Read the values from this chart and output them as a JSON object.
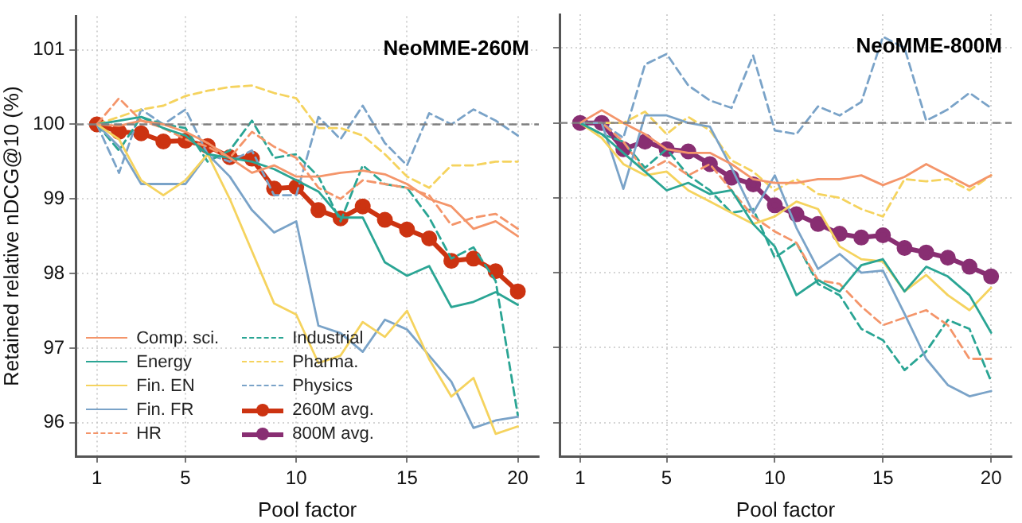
{
  "chart_data": [
    {
      "type": "line",
      "title": "NeoMME-260M",
      "xlabel": "Pool factor",
      "ylabel": "Retained relative nDCG@10 (%)",
      "x": [
        1,
        2,
        3,
        4,
        5,
        6,
        7,
        8,
        9,
        10,
        11,
        12,
        13,
        14,
        15,
        16,
        17,
        18,
        19,
        20
      ],
      "xlim": [
        0.05,
        20.95
      ],
      "xticks": [
        1,
        5,
        10,
        15,
        20
      ],
      "ylim": [
        95.55,
        101.45
      ],
      "yticks": [
        96,
        97,
        98,
        99,
        100,
        101
      ],
      "grid": true,
      "legend": "bottom left",
      "marker": "none",
      "line_style": "solid",
      "ref_lines": [
        {
          "axis": "y",
          "value": 100,
          "color": "#808080",
          "line_style": "dashed"
        }
      ],
      "series": [
        {
          "name": "Comp. sci.",
          "color": "#f4956a",
          "values": [
            100,
            99.98,
            100.05,
            100.0,
            99.9,
            99.75,
            99.55,
            99.35,
            99.45,
            99.3,
            99.3,
            99.35,
            99.38,
            99.33,
            99.2,
            99.0,
            98.9,
            98.6,
            98.7,
            98.5
          ]
        },
        {
          "name": "Energy",
          "color": "#2aa594",
          "values": [
            100,
            100.05,
            100.1,
            99.95,
            99.85,
            99.6,
            99.55,
            99.5,
            99.4,
            99.25,
            99.1,
            98.75,
            98.75,
            98.15,
            97.97,
            98.1,
            97.55,
            97.62,
            97.75,
            97.58
          ]
        },
        {
          "name": "Fin. EN",
          "color": "#f5d35e",
          "values": [
            100,
            99.8,
            99.25,
            99.05,
            99.25,
            99.6,
            99.0,
            98.3,
            97.6,
            97.45,
            96.8,
            96.9,
            97.35,
            97.15,
            97.5,
            96.85,
            96.35,
            96.6,
            95.85,
            95.95
          ]
        },
        {
          "name": "Fin. FR",
          "color": "#7aa3c8",
          "values": [
            100,
            99.7,
            99.2,
            99.2,
            99.2,
            99.6,
            99.3,
            98.85,
            98.55,
            98.7,
            97.3,
            97.2,
            96.95,
            97.38,
            97.25,
            96.9,
            96.55,
            95.93,
            96.03,
            96.08
          ]
        },
        {
          "name": "HR",
          "color": "#f4956a",
          "line_style": "dashed",
          "values": [
            100,
            100.35,
            100.05,
            99.95,
            99.8,
            99.7,
            99.55,
            99.9,
            99.7,
            99.55,
            99.15,
            99.0,
            99.25,
            99.2,
            99.15,
            99.05,
            98.65,
            98.75,
            98.8,
            98.6
          ]
        },
        {
          "name": "Industrial",
          "color": "#2aa594",
          "line_style": "dashed",
          "values": [
            100,
            99.65,
            100.1,
            100.0,
            99.95,
            99.5,
            99.65,
            100.05,
            99.55,
            99.6,
            99.3,
            98.7,
            99.45,
            99.2,
            99.15,
            98.75,
            98.2,
            98.35,
            97.9,
            96.1
          ]
        },
        {
          "name": "Pharma.",
          "color": "#f5d35e",
          "line_style": "dashed",
          "values": [
            100,
            100.1,
            100.2,
            100.25,
            100.38,
            100.45,
            100.5,
            100.52,
            100.42,
            100.35,
            99.95,
            99.95,
            99.85,
            99.6,
            99.3,
            99.15,
            99.45,
            99.45,
            99.5,
            99.5
          ]
        },
        {
          "name": "Physics",
          "color": "#7aa3c8",
          "line_style": "dashed",
          "values": [
            100,
            99.35,
            100.2,
            100.0,
            100.2,
            99.6,
            99.5,
            99.65,
            99.05,
            99.05,
            100.1,
            99.8,
            100.25,
            99.75,
            99.45,
            100.15,
            100.0,
            100.2,
            100.05,
            99.85
          ]
        },
        {
          "name": "260M avg.",
          "color": "#cc3311",
          "marker": "circle",
          "values": [
            100,
            99.9,
            99.88,
            99.77,
            99.78,
            99.71,
            99.56,
            99.54,
            99.14,
            99.16,
            98.85,
            98.74,
            98.9,
            98.72,
            98.59,
            98.47,
            98.17,
            98.2,
            98.03,
            97.76
          ]
        },
        {
          "name": "800M avg.",
          "color": "#882e72",
          "marker": "circle",
          "values": [
            null,
            null,
            null,
            null,
            null,
            null,
            null,
            null,
            null,
            null,
            null,
            null,
            null,
            null,
            null,
            null,
            null,
            null,
            null,
            null
          ]
        }
      ]
    },
    {
      "type": "line",
      "title": "NeoMME-800M",
      "xlabel": "Pool factor",
      "x": [
        1,
        2,
        3,
        4,
        5,
        6,
        7,
        8,
        9,
        10,
        11,
        12,
        13,
        14,
        15,
        16,
        17,
        18,
        19,
        20
      ],
      "xlim": [
        0.05,
        20.95
      ],
      "xticks": [
        1,
        5,
        10,
        15,
        20
      ],
      "ylim": [
        95.55,
        101.45
      ],
      "yticks": [
        96,
        97,
        98,
        99,
        100,
        101
      ],
      "grid": true,
      "legend": false,
      "marker": "none",
      "line_style": "solid",
      "tick_labels": "x",
      "ref_lines": [
        {
          "axis": "y",
          "value": 100,
          "color": "#808080",
          "line_style": "dashed"
        }
      ],
      "series": [
        {
          "color": "#f4956a",
          "values": [
            100,
            100.17,
            100.0,
            99.85,
            99.65,
            99.6,
            99.6,
            99.45,
            99.25,
            99.2,
            99.2,
            99.25,
            99.25,
            99.3,
            99.17,
            99.28,
            99.45,
            99.3,
            99.15,
            99.3
          ]
        },
        {
          "color": "#2aa594",
          "values": [
            100,
            99.85,
            99.6,
            99.35,
            99.1,
            99.2,
            99.05,
            99.1,
            98.65,
            98.35,
            97.7,
            97.9,
            97.75,
            98.1,
            98.18,
            97.75,
            98.08,
            97.95,
            97.7,
            97.2
          ]
        },
        {
          "color": "#f5d35e",
          "values": [
            100,
            99.8,
            99.45,
            99.3,
            99.35,
            99.1,
            98.95,
            98.8,
            98.65,
            98.75,
            98.95,
            98.85,
            98.35,
            98.18,
            98.15,
            97.75,
            97.97,
            97.7,
            97.5,
            97.8
          ]
        },
        {
          "color": "#7aa3c8",
          "values": [
            100,
            100.0,
            99.12,
            100.1,
            100.1,
            100.0,
            99.95,
            99.4,
            98.8,
            99.3,
            98.6,
            98.05,
            98.25,
            98.0,
            98.03,
            97.45,
            96.85,
            96.5,
            96.35,
            96.42
          ]
        },
        {
          "color": "#f4956a",
          "line_style": "dashed",
          "values": [
            100,
            100.0,
            99.75,
            99.35,
            99.5,
            99.3,
            99.45,
            99.1,
            98.75,
            98.55,
            98.4,
            97.9,
            97.85,
            97.55,
            97.3,
            97.4,
            97.5,
            97.3,
            96.85,
            96.85
          ]
        },
        {
          "color": "#2aa594",
          "line_style": "dashed",
          "values": [
            100,
            99.85,
            99.75,
            99.4,
            99.65,
            99.3,
            99.1,
            98.8,
            98.85,
            98.2,
            98.4,
            97.85,
            97.7,
            97.25,
            97.1,
            96.7,
            96.95,
            97.37,
            97.25,
            96.55
          ]
        },
        {
          "color": "#f5d35e",
          "line_style": "dashed",
          "values": [
            100,
            100.0,
            100.0,
            100.15,
            99.85,
            100.08,
            99.9,
            99.5,
            99.35,
            99.1,
            99.25,
            99.05,
            99.0,
            98.85,
            98.75,
            99.25,
            99.22,
            99.25,
            99.1,
            99.3
          ]
        },
        {
          "color": "#7aa3c8",
          "line_style": "dashed",
          "values": [
            100,
            100.0,
            99.8,
            100.78,
            100.92,
            100.5,
            100.3,
            100.2,
            100.9,
            99.9,
            99.85,
            100.22,
            100.1,
            100.28,
            101.15,
            101.0,
            100.03,
            100.18,
            100.4,
            100.2
          ]
        },
        {
          "color": "#882e72",
          "marker": "circle",
          "values": [
            100,
            100.0,
            99.65,
            99.75,
            99.65,
            99.62,
            99.45,
            99.27,
            99.18,
            98.9,
            98.78,
            98.65,
            98.52,
            98.47,
            98.5,
            98.33,
            98.27,
            98.2,
            98.08,
            97.95
          ]
        }
      ]
    }
  ]
}
